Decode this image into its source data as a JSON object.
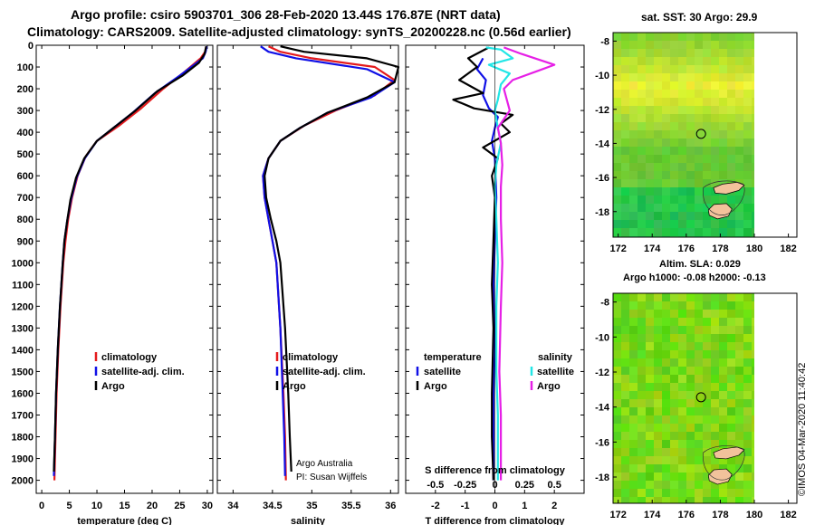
{
  "titles": {
    "line1": "Argo profile: csiro 5903701_306 28-Feb-2020 13.44S 176.87E (NRT data)",
    "line2": "Climatology: CARS2009. Satellite-adjusted climatology: synTS_20200228.nc (0.56d earlier)"
  },
  "colors": {
    "climatology": "#e41a1c",
    "satellite": "#1010e6",
    "argo": "#000000",
    "sat_sal": "#22e6e6",
    "argo_sal": "#e620e6"
  },
  "chart_data": [
    {
      "type": "line",
      "title": "",
      "xlabel": "temperature (deg C)",
      "ylabel": "",
      "xlim": [
        -1,
        31
      ],
      "ylim": [
        0,
        2060
      ],
      "xticks": [
        0,
        5,
        10,
        15,
        20,
        25,
        30
      ],
      "yticks": [
        0,
        100,
        200,
        300,
        400,
        500,
        600,
        700,
        800,
        900,
        1000,
        1100,
        1200,
        1300,
        1400,
        1500,
        1600,
        1700,
        1800,
        1900,
        2000
      ],
      "legend": [
        "climatology",
        "satellite-adj. clim.",
        "Argo"
      ],
      "series": [
        {
          "name": "climatology",
          "color": "#e41a1c",
          "points": [
            [
              29.8,
              5
            ],
            [
              29.6,
              30
            ],
            [
              28.8,
              60
            ],
            [
              26,
              120
            ],
            [
              22,
              200
            ],
            [
              18,
              290
            ],
            [
              14,
              370
            ],
            [
              10,
              440
            ],
            [
              8,
              510
            ],
            [
              6.5,
              600
            ],
            [
              5.5,
              700
            ],
            [
              4.8,
              800
            ],
            [
              4.3,
              900
            ],
            [
              3.9,
              1000
            ],
            [
              3.4,
              1200
            ],
            [
              3.0,
              1400
            ],
            [
              2.7,
              1600
            ],
            [
              2.5,
              1800
            ],
            [
              2.3,
              2000
            ]
          ]
        },
        {
          "name": "satellite-adj. clim.",
          "color": "#1010e6",
          "points": [
            [
              29.9,
              5
            ],
            [
              29.7,
              30
            ],
            [
              29.2,
              60
            ],
            [
              25,
              140
            ],
            [
              20.5,
              220
            ],
            [
              16.5,
              310
            ],
            [
              13,
              380
            ],
            [
              10,
              440
            ],
            [
              7.8,
              520
            ],
            [
              6.3,
              610
            ],
            [
              5.3,
              710
            ],
            [
              4.6,
              810
            ],
            [
              4.1,
              900
            ],
            [
              3.8,
              1000
            ],
            [
              3.3,
              1200
            ],
            [
              2.9,
              1400
            ],
            [
              2.6,
              1600
            ],
            [
              2.4,
              1800
            ],
            [
              2.2,
              1980
            ]
          ]
        },
        {
          "name": "Argo",
          "color": "#000000",
          "points": [
            [
              29.8,
              5
            ],
            [
              29.5,
              40
            ],
            [
              28.5,
              80
            ],
            [
              25.5,
              140
            ],
            [
              21,
              210
            ],
            [
              17,
              300
            ],
            [
              13,
              380
            ],
            [
              10,
              440
            ],
            [
              7.7,
              520
            ],
            [
              6.2,
              610
            ],
            [
              5.2,
              710
            ],
            [
              4.6,
              810
            ],
            [
              4.1,
              900
            ],
            [
              3.8,
              1000
            ],
            [
              3.3,
              1200
            ],
            [
              2.9,
              1400
            ],
            [
              2.6,
              1600
            ],
            [
              2.4,
              1800
            ],
            [
              2.2,
              1960
            ]
          ]
        }
      ]
    },
    {
      "type": "line",
      "title": "",
      "xlabel": "salinity",
      "ylabel": "",
      "xlim": [
        33.8,
        36.1
      ],
      "ylim": [
        0,
        2060
      ],
      "xticks": [
        34,
        34.5,
        35,
        35.5,
        36
      ],
      "legend": [
        "climatology",
        "satellite-adj. clim.",
        "Argo"
      ],
      "series": [
        {
          "name": "climatology",
          "color": "#e41a1c",
          "points": [
            [
              34.45,
              5
            ],
            [
              34.6,
              30
            ],
            [
              35.0,
              60
            ],
            [
              35.8,
              100
            ],
            [
              36.05,
              160
            ],
            [
              35.8,
              230
            ],
            [
              35.3,
              300
            ],
            [
              34.9,
              370
            ],
            [
              34.6,
              440
            ],
            [
              34.45,
              520
            ],
            [
              34.38,
              600
            ],
            [
              34.4,
              700
            ],
            [
              34.45,
              800
            ],
            [
              34.5,
              900
            ],
            [
              34.55,
              1000
            ],
            [
              34.6,
              1300
            ],
            [
              34.64,
              1600
            ],
            [
              34.66,
              1800
            ],
            [
              34.67,
              2000
            ]
          ]
        },
        {
          "name": "satellite-adj. clim.",
          "color": "#1010e6",
          "points": [
            [
              34.35,
              5
            ],
            [
              34.45,
              30
            ],
            [
              34.8,
              60
            ],
            [
              35.7,
              110
            ],
            [
              36.05,
              170
            ],
            [
              35.75,
              240
            ],
            [
              35.2,
              310
            ],
            [
              34.85,
              380
            ],
            [
              34.6,
              440
            ],
            [
              34.45,
              520
            ],
            [
              34.38,
              600
            ],
            [
              34.4,
              700
            ],
            [
              34.45,
              800
            ],
            [
              34.5,
              900
            ],
            [
              34.55,
              1000
            ],
            [
              34.6,
              1300
            ],
            [
              34.63,
              1600
            ],
            [
              34.65,
              1800
            ],
            [
              34.66,
              1980
            ]
          ]
        },
        {
          "name": "Argo",
          "color": "#000000",
          "points": [
            [
              34.6,
              5
            ],
            [
              34.9,
              30
            ],
            [
              35.7,
              60
            ],
            [
              36.1,
              100
            ],
            [
              36.05,
              170
            ],
            [
              35.7,
              240
            ],
            [
              35.2,
              310
            ],
            [
              34.85,
              380
            ],
            [
              34.6,
              440
            ],
            [
              34.45,
              520
            ],
            [
              34.4,
              600
            ],
            [
              34.42,
              700
            ],
            [
              34.48,
              800
            ],
            [
              34.55,
              900
            ],
            [
              34.6,
              1000
            ],
            [
              34.66,
              1300
            ],
            [
              34.7,
              1600
            ],
            [
              34.72,
              1800
            ],
            [
              34.74,
              1960
            ]
          ]
        }
      ],
      "credits": [
        "Argo Australia",
        "PI: Susan Wijffels"
      ]
    },
    {
      "type": "line",
      "title": "",
      "xlabel": "T difference from climatology",
      "ylabel": "",
      "xlim": [
        -3,
        3
      ],
      "ylim": [
        0,
        2060
      ],
      "xticks": [
        -2,
        -1,
        0,
        1,
        2
      ],
      "secondary_axis": {
        "label": "S difference from climatology",
        "ticks": [
          "-0.5",
          "-0.25",
          "0",
          "0.25",
          "0.5"
        ]
      },
      "legend_temperature_title": "temperature",
      "legend_salinity_title": "salinity",
      "legend_temperature": [
        "satellite",
        "Argo"
      ],
      "legend_salinity": [
        "satellite",
        "Argo"
      ],
      "series": [
        {
          "name": "temperature satellite",
          "color": "#1010e6",
          "points": [
            [
              -0.4,
              60
            ],
            [
              -0.6,
              110
            ],
            [
              -0.3,
              160
            ],
            [
              -0.4,
              230
            ],
            [
              -0.2,
              290
            ],
            [
              0.1,
              330
            ],
            [
              0,
              380
            ],
            [
              -0.1,
              440
            ],
            [
              0,
              520
            ],
            [
              0.05,
              700
            ],
            [
              0,
              900
            ],
            [
              -0.05,
              1100
            ],
            [
              0,
              1400
            ],
            [
              -0.05,
              1600
            ],
            [
              -0.05,
              1800
            ],
            [
              -0.05,
              2000
            ]
          ]
        },
        {
          "name": "temperature Argo",
          "color": "#000000",
          "points": [
            [
              -0.2,
              10
            ],
            [
              -0.9,
              60
            ],
            [
              -0.6,
              100
            ],
            [
              -1.2,
              160
            ],
            [
              -0.4,
              220
            ],
            [
              -1.4,
              250
            ],
            [
              -0.7,
              290
            ],
            [
              0.6,
              320
            ],
            [
              0.2,
              360
            ],
            [
              0.5,
              400
            ],
            [
              -0.4,
              470
            ],
            [
              0.1,
              520
            ],
            [
              -0.1,
              600
            ],
            [
              0.0,
              700
            ],
            [
              -0.05,
              900
            ],
            [
              -0.1,
              1100
            ],
            [
              -0.05,
              1300
            ],
            [
              -0.1,
              1600
            ],
            [
              -0.1,
              1800
            ],
            [
              -0.05,
              2000
            ]
          ]
        },
        {
          "name": "salinity satellite",
          "color": "#22e6e6",
          "points": [
            [
              -0.3,
              10
            ],
            [
              0.2,
              20
            ],
            [
              0.6,
              60
            ],
            [
              -0.2,
              90
            ],
            [
              0.5,
              130
            ],
            [
              0.2,
              180
            ],
            [
              0.1,
              250
            ],
            [
              0.0,
              300
            ],
            [
              0.1,
              380
            ],
            [
              0.2,
              450
            ],
            [
              0.05,
              550
            ],
            [
              0.0,
              650
            ],
            [
              0.05,
              800
            ],
            [
              0.1,
              1000
            ],
            [
              0.05,
              1200
            ],
            [
              0.05,
              1500
            ],
            [
              0.1,
              1700
            ],
            [
              0.1,
              2000
            ]
          ]
        },
        {
          "name": "salinity Argo",
          "color": "#e620e6",
          "points": [
            [
              0.3,
              10
            ],
            [
              0.9,
              40
            ],
            [
              2.0,
              90
            ],
            [
              1.4,
              120
            ],
            [
              0.6,
              160
            ],
            [
              0.3,
              200
            ],
            [
              0.5,
              300
            ],
            [
              0.1,
              380
            ],
            [
              0.2,
              450
            ],
            [
              0.25,
              550
            ],
            [
              0.2,
              650
            ],
            [
              0.2,
              800
            ],
            [
              0.25,
              1000
            ],
            [
              0.2,
              1200
            ],
            [
              0.15,
              1500
            ],
            [
              0.2,
              1700
            ],
            [
              0.2,
              2000
            ]
          ]
        }
      ]
    },
    {
      "type": "heatmap",
      "title": "sat. SST: 30 Argo: 29.9",
      "xticks": [
        172,
        174,
        176,
        178,
        180,
        182
      ],
      "yticks": [
        -8,
        -10,
        -12,
        -14,
        -16,
        -18
      ],
      "marker": {
        "lon": 176.87,
        "lat": -13.44
      },
      "lon_range": [
        171.7,
        182.5
      ],
      "lat_range": [
        -19.5,
        -7.5
      ],
      "data_lon_max": 180
    },
    {
      "type": "heatmap",
      "title": "Altim. SLA: 0.029",
      "subtitle": "Argo h1000: -0.08 h2000: -0.13",
      "xticks": [
        172,
        174,
        176,
        178,
        180,
        182
      ],
      "yticks": [
        -8,
        -10,
        -12,
        -14,
        -16,
        -18
      ],
      "marker": {
        "lon": 176.87,
        "lat": -13.44
      },
      "lon_range": [
        171.7,
        182.5
      ],
      "lat_range": [
        -19.5,
        -7.5
      ],
      "data_lon_max": 180,
      "watermark": "©IMOS 04-Mar-2020 11:40:42"
    }
  ]
}
